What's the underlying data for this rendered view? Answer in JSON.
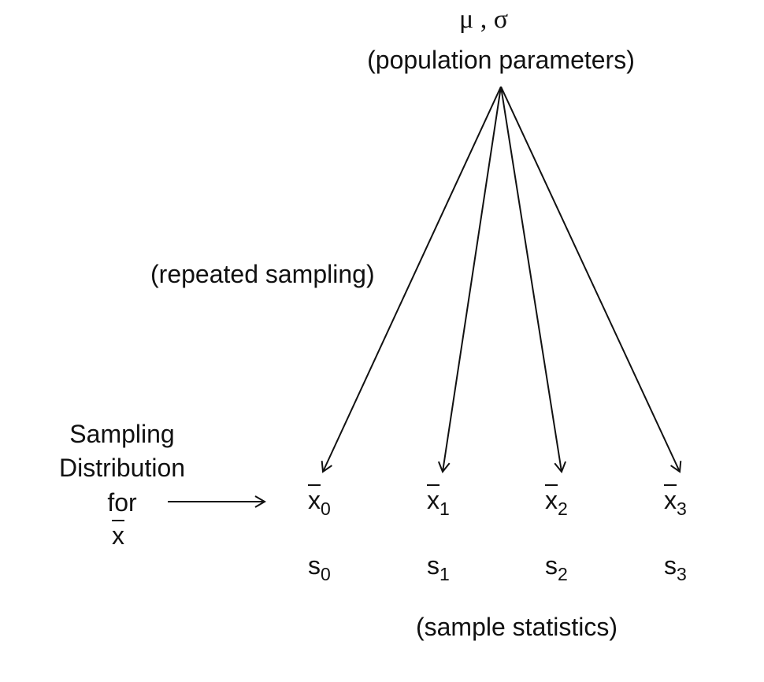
{
  "parameters": {
    "mu": "μ",
    "separator": " , ",
    "sigma": "σ"
  },
  "parameters_label": "(population parameters)",
  "sampling_label": "(repeated sampling)",
  "sampling_distribution": {
    "line1": "Sampling",
    "line2": "Distribution",
    "line3": "for",
    "line4": "x"
  },
  "samples": [
    {
      "mean": "x",
      "sd": "s",
      "index": "0"
    },
    {
      "mean": "x",
      "sd": "s",
      "index": "1"
    },
    {
      "mean": "x",
      "sd": "s",
      "index": "2"
    },
    {
      "mean": "x",
      "sd": "s",
      "index": "3"
    }
  ],
  "statistics_label": "(sample statistics)",
  "colors": {
    "ink": "#111111",
    "background": "#ffffff"
  }
}
